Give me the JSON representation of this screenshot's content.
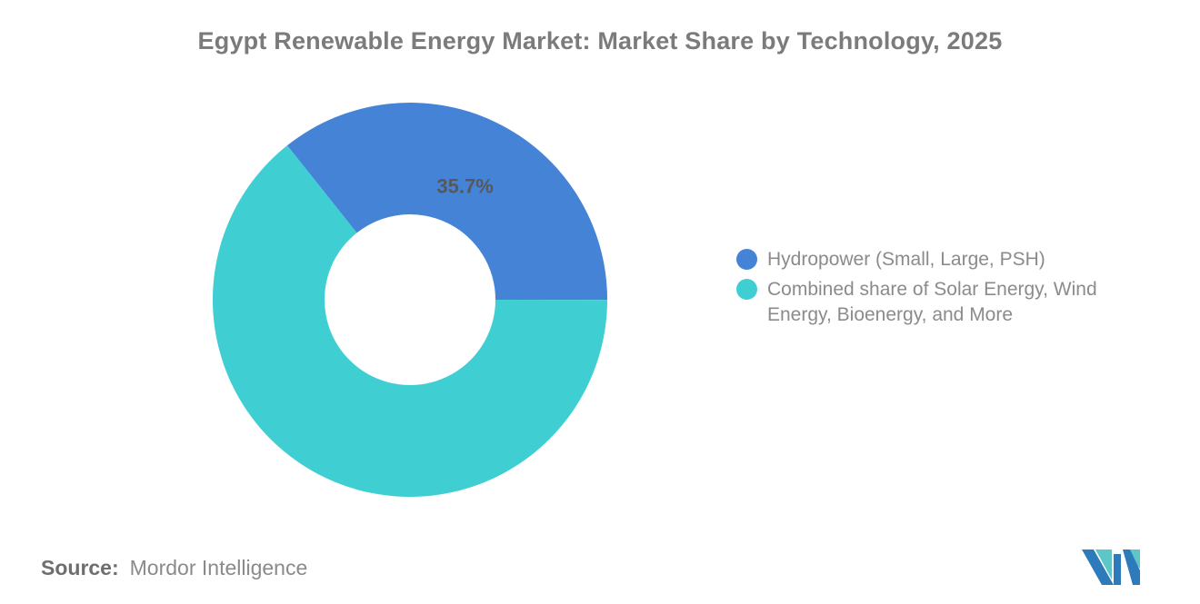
{
  "chart_data": {
    "type": "pie",
    "donut": true,
    "title": "Egypt Renewable Energy Market: Market Share by Technology, 2025",
    "start_angle_deg": -38.5,
    "outer_radius_px": 217,
    "inner_radius_px": 94,
    "label_color": "#57585A",
    "legend_position": "right",
    "slices": [
      {
        "name": "Hydropower (Small, Large, PSH)",
        "value": 35.7,
        "label": "35.7%",
        "color": "#4583D7"
      },
      {
        "name": "Combined share of Solar Energy, Wind Energy, Bioenergy, and More",
        "value": 64.3,
        "label": "",
        "color": "#3FCFD3"
      }
    ]
  },
  "source": {
    "label": "Source:",
    "value": "Mordor Intelligence"
  },
  "logo": {
    "name": "Mordor Intelligence logo",
    "colors": {
      "blue": "#2E7BBC",
      "teal": "#5CC6C8"
    }
  }
}
